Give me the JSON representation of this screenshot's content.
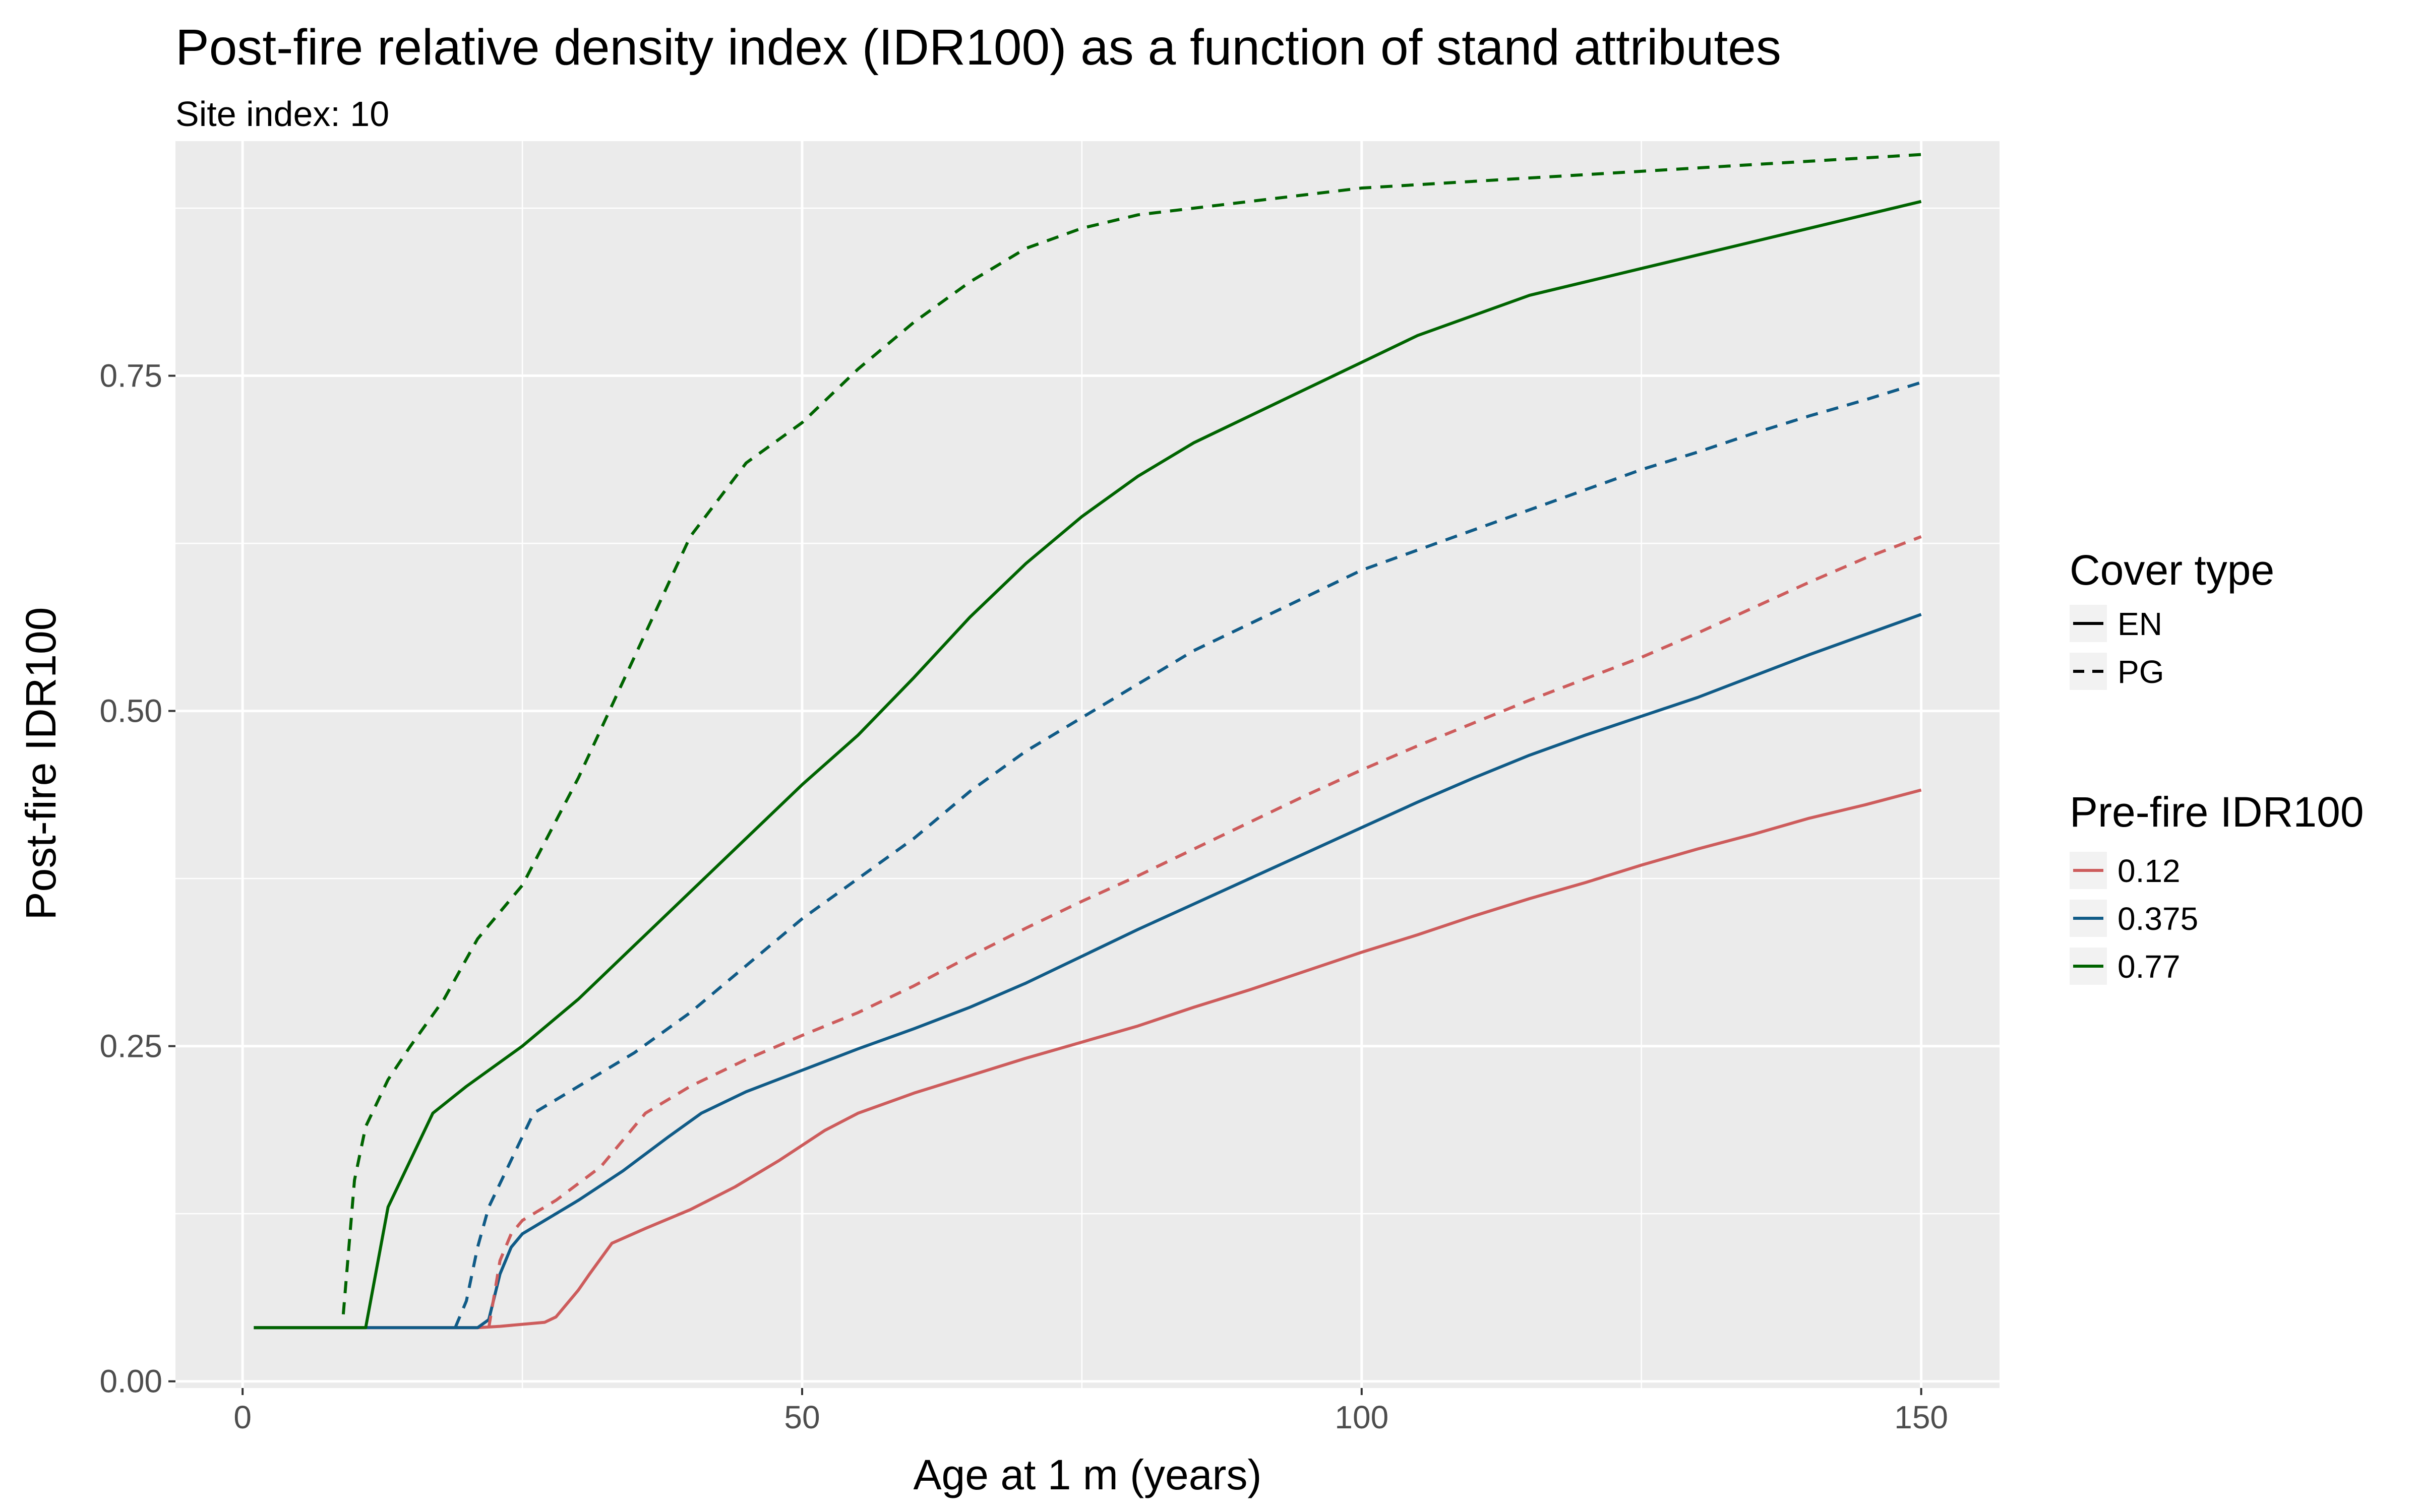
{
  "chart_data": {
    "type": "line",
    "title": "Post-fire relative density index (IDR100) as a function of stand attributes",
    "subtitle": "Site index: 10",
    "xlabel": "Age at 1 m (years)",
    "ylabel": "Post-fire IDR100",
    "xlim": [
      -6,
      157
    ],
    "ylim": [
      -0.005,
      0.925
    ],
    "x_ticks": [
      0,
      50,
      100,
      150
    ],
    "x_tick_labels": [
      "0",
      "50",
      "100",
      "150"
    ],
    "y_ticks": [
      0,
      0.25,
      0.5,
      0.75
    ],
    "y_tick_labels": [
      "0.00",
      "0.25",
      "0.50",
      "0.75"
    ],
    "grid": true,
    "background": "#ebebeb",
    "legend_position": "right",
    "legends": [
      {
        "title": "Cover type",
        "entries": [
          {
            "label": "EN",
            "linetype": "solid"
          },
          {
            "label": "PG",
            "linetype": "dashed"
          }
        ]
      },
      {
        "title": "Pre-fire IDR100",
        "entries": [
          {
            "label": "0.12",
            "color": "#cd5c5c"
          },
          {
            "label": "0.375",
            "color": "#105b87"
          },
          {
            "label": "0.77",
            "color": "#006400"
          }
        ]
      }
    ],
    "series": [
      {
        "cover": "EN",
        "prefire": "0.12",
        "color": "#cd5c5c",
        "linetype": "solid",
        "points": [
          [
            1,
            0.04
          ],
          [
            21,
            0.04
          ],
          [
            23,
            0.041
          ],
          [
            27,
            0.044
          ],
          [
            28,
            0.048
          ],
          [
            30,
            0.068
          ],
          [
            31,
            0.08
          ],
          [
            33,
            0.103
          ],
          [
            36,
            0.114
          ],
          [
            40,
            0.128
          ],
          [
            44,
            0.145
          ],
          [
            48,
            0.165
          ],
          [
            52,
            0.187
          ],
          [
            55,
            0.2
          ],
          [
            60,
            0.215
          ],
          [
            65,
            0.228
          ],
          [
            70,
            0.241
          ],
          [
            75,
            0.253
          ],
          [
            80,
            0.265
          ],
          [
            85,
            0.279
          ],
          [
            90,
            0.292
          ],
          [
            95,
            0.306
          ],
          [
            100,
            0.32
          ],
          [
            105,
            0.333
          ],
          [
            110,
            0.347
          ],
          [
            115,
            0.36
          ],
          [
            120,
            0.372
          ],
          [
            125,
            0.385
          ],
          [
            130,
            0.397
          ],
          [
            135,
            0.408
          ],
          [
            140,
            0.42
          ],
          [
            145,
            0.43
          ],
          [
            150,
            0.441
          ]
        ]
      },
      {
        "cover": "EN",
        "prefire": "0.375",
        "color": "#105b87",
        "linetype": "solid",
        "points": [
          [
            1,
            0.04
          ],
          [
            20,
            0.04
          ],
          [
            21,
            0.04
          ],
          [
            22,
            0.046
          ],
          [
            23,
            0.08
          ],
          [
            24,
            0.1
          ],
          [
            25,
            0.11
          ],
          [
            27,
            0.12
          ],
          [
            30,
            0.135
          ],
          [
            34,
            0.157
          ],
          [
            38,
            0.182
          ],
          [
            41,
            0.2
          ],
          [
            45,
            0.216
          ],
          [
            50,
            0.232
          ],
          [
            55,
            0.248
          ],
          [
            60,
            0.263
          ],
          [
            65,
            0.279
          ],
          [
            70,
            0.297
          ],
          [
            75,
            0.317
          ],
          [
            80,
            0.337
          ],
          [
            85,
            0.356
          ],
          [
            90,
            0.375
          ],
          [
            95,
            0.394
          ],
          [
            100,
            0.413
          ],
          [
            105,
            0.432
          ],
          [
            110,
            0.45
          ],
          [
            115,
            0.467
          ],
          [
            120,
            0.482
          ],
          [
            125,
            0.496
          ],
          [
            130,
            0.51
          ],
          [
            135,
            0.526
          ],
          [
            140,
            0.542
          ],
          [
            145,
            0.557
          ],
          [
            150,
            0.572
          ]
        ]
      },
      {
        "cover": "EN",
        "prefire": "0.77",
        "color": "#006400",
        "linetype": "solid",
        "points": [
          [
            1,
            0.04
          ],
          [
            11,
            0.04
          ],
          [
            13,
            0.13
          ],
          [
            15,
            0.165
          ],
          [
            17,
            0.2
          ],
          [
            20,
            0.22
          ],
          [
            25,
            0.25
          ],
          [
            30,
            0.285
          ],
          [
            35,
            0.325
          ],
          [
            40,
            0.365
          ],
          [
            45,
            0.405
          ],
          [
            50,
            0.445
          ],
          [
            55,
            0.482
          ],
          [
            60,
            0.525
          ],
          [
            65,
            0.57
          ],
          [
            70,
            0.61
          ],
          [
            75,
            0.645
          ],
          [
            80,
            0.675
          ],
          [
            85,
            0.7
          ],
          [
            90,
            0.72
          ],
          [
            95,
            0.74
          ],
          [
            100,
            0.76
          ],
          [
            105,
            0.78
          ],
          [
            110,
            0.795
          ],
          [
            115,
            0.81
          ],
          [
            120,
            0.82
          ],
          [
            125,
            0.83
          ],
          [
            130,
            0.84
          ],
          [
            135,
            0.85
          ],
          [
            140,
            0.86
          ],
          [
            145,
            0.87
          ],
          [
            150,
            0.88
          ]
        ]
      },
      {
        "cover": "PG",
        "prefire": "0.12",
        "color": "#cd5c5c",
        "linetype": "dashed",
        "points": [
          [
            22,
            0.04
          ],
          [
            23,
            0.09
          ],
          [
            24,
            0.11
          ],
          [
            25,
            0.12
          ],
          [
            28,
            0.135
          ],
          [
            32,
            0.16
          ],
          [
            36,
            0.2
          ],
          [
            40,
            0.22
          ],
          [
            45,
            0.24
          ],
          [
            50,
            0.258
          ],
          [
            55,
            0.275
          ],
          [
            60,
            0.295
          ],
          [
            65,
            0.317
          ],
          [
            70,
            0.338
          ],
          [
            75,
            0.358
          ],
          [
            80,
            0.377
          ],
          [
            85,
            0.397
          ],
          [
            90,
            0.417
          ],
          [
            95,
            0.437
          ],
          [
            100,
            0.456
          ],
          [
            105,
            0.474
          ],
          [
            110,
            0.491
          ],
          [
            115,
            0.508
          ],
          [
            120,
            0.524
          ],
          [
            125,
            0.54
          ],
          [
            130,
            0.558
          ],
          [
            135,
            0.577
          ],
          [
            140,
            0.596
          ],
          [
            145,
            0.614
          ],
          [
            150,
            0.63
          ]
        ]
      },
      {
        "cover": "PG",
        "prefire": "0.375",
        "color": "#105b87",
        "linetype": "dashed",
        "points": [
          [
            19,
            0.04
          ],
          [
            20,
            0.06
          ],
          [
            21,
            0.1
          ],
          [
            22,
            0.13
          ],
          [
            24,
            0.165
          ],
          [
            26,
            0.2
          ],
          [
            30,
            0.22
          ],
          [
            35,
            0.245
          ],
          [
            40,
            0.275
          ],
          [
            45,
            0.31
          ],
          [
            50,
            0.345
          ],
          [
            55,
            0.375
          ],
          [
            60,
            0.405
          ],
          [
            65,
            0.44
          ],
          [
            70,
            0.47
          ],
          [
            75,
            0.495
          ],
          [
            80,
            0.52
          ],
          [
            85,
            0.545
          ],
          [
            90,
            0.565
          ],
          [
            95,
            0.585
          ],
          [
            100,
            0.605
          ],
          [
            105,
            0.62
          ],
          [
            110,
            0.635
          ],
          [
            115,
            0.65
          ],
          [
            120,
            0.665
          ],
          [
            125,
            0.68
          ],
          [
            130,
            0.693
          ],
          [
            135,
            0.707
          ],
          [
            140,
            0.72
          ],
          [
            145,
            0.732
          ],
          [
            150,
            0.745
          ]
        ]
      },
      {
        "cover": "PG",
        "prefire": "0.77",
        "color": "#006400",
        "linetype": "dashed",
        "points": [
          [
            9,
            0.05
          ],
          [
            10,
            0.15
          ],
          [
            11,
            0.19
          ],
          [
            13,
            0.225
          ],
          [
            15,
            0.25
          ],
          [
            18,
            0.285
          ],
          [
            21,
            0.33
          ],
          [
            25,
            0.37
          ],
          [
            30,
            0.45
          ],
          [
            35,
            0.54
          ],
          [
            40,
            0.63
          ],
          [
            45,
            0.685
          ],
          [
            50,
            0.715
          ],
          [
            55,
            0.755
          ],
          [
            60,
            0.79
          ],
          [
            65,
            0.82
          ],
          [
            70,
            0.845
          ],
          [
            75,
            0.86
          ],
          [
            80,
            0.87
          ],
          [
            85,
            0.875
          ],
          [
            90,
            0.88
          ],
          [
            95,
            0.885
          ],
          [
            100,
            0.89
          ],
          [
            110,
            0.895
          ],
          [
            120,
            0.9
          ],
          [
            130,
            0.905
          ],
          [
            140,
            0.91
          ],
          [
            150,
            0.915
          ]
        ]
      }
    ]
  }
}
